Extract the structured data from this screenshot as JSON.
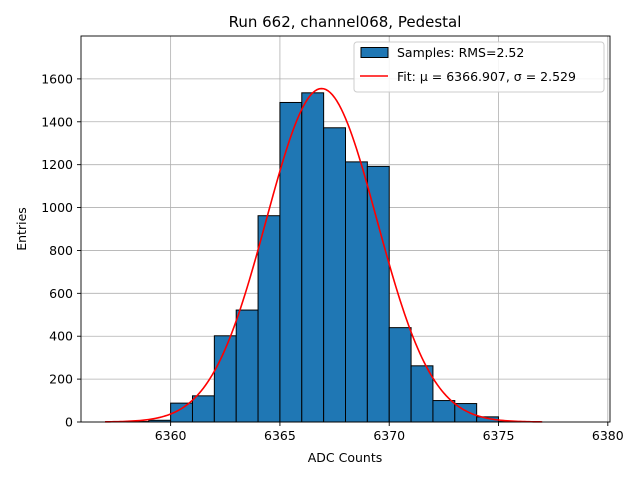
{
  "chart_data": {
    "type": "bar",
    "title": "Run 662, channel068, Pedestal",
    "xlabel": "ADC Counts",
    "ylabel": "Entries",
    "xlim": [
      6355.9,
      6380.1
    ],
    "ylim": [
      0,
      1800
    ],
    "x_ticks": [
      6360,
      6365,
      6370,
      6375,
      6380
    ],
    "y_ticks": [
      0,
      200,
      400,
      600,
      800,
      1000,
      1200,
      1400,
      1600
    ],
    "grid": true,
    "legend_position": "top-right",
    "bins": {
      "left_edges": [
        6357,
        6358,
        6359,
        6360,
        6361,
        6362,
        6363,
        6364,
        6365,
        6366,
        6367,
        6368,
        6369,
        6370,
        6371,
        6372,
        6373,
        6374,
        6375,
        6376,
        6377,
        6378
      ],
      "width": 1,
      "counts": [
        0,
        2,
        8,
        88,
        122,
        402,
        522,
        962,
        1490,
        1535,
        1372,
        1213,
        1192,
        440,
        262,
        100,
        86,
        24,
        2,
        0,
        0,
        0
      ]
    },
    "fit": {
      "mu": 6366.907,
      "sigma": 2.529,
      "peak": 1555,
      "x_range": [
        6357,
        6377
      ]
    },
    "legend": [
      {
        "label": "Samples: RMS=2.52",
        "kind": "patch",
        "color": "#1f77b4"
      },
      {
        "label": "Fit: μ = 6366.907, σ = 2.529",
        "kind": "line",
        "color": "#ff0000"
      }
    ],
    "colors": {
      "bars": "#1f77b4",
      "fit": "#ff0000",
      "grid": "#b0b0b0"
    }
  }
}
